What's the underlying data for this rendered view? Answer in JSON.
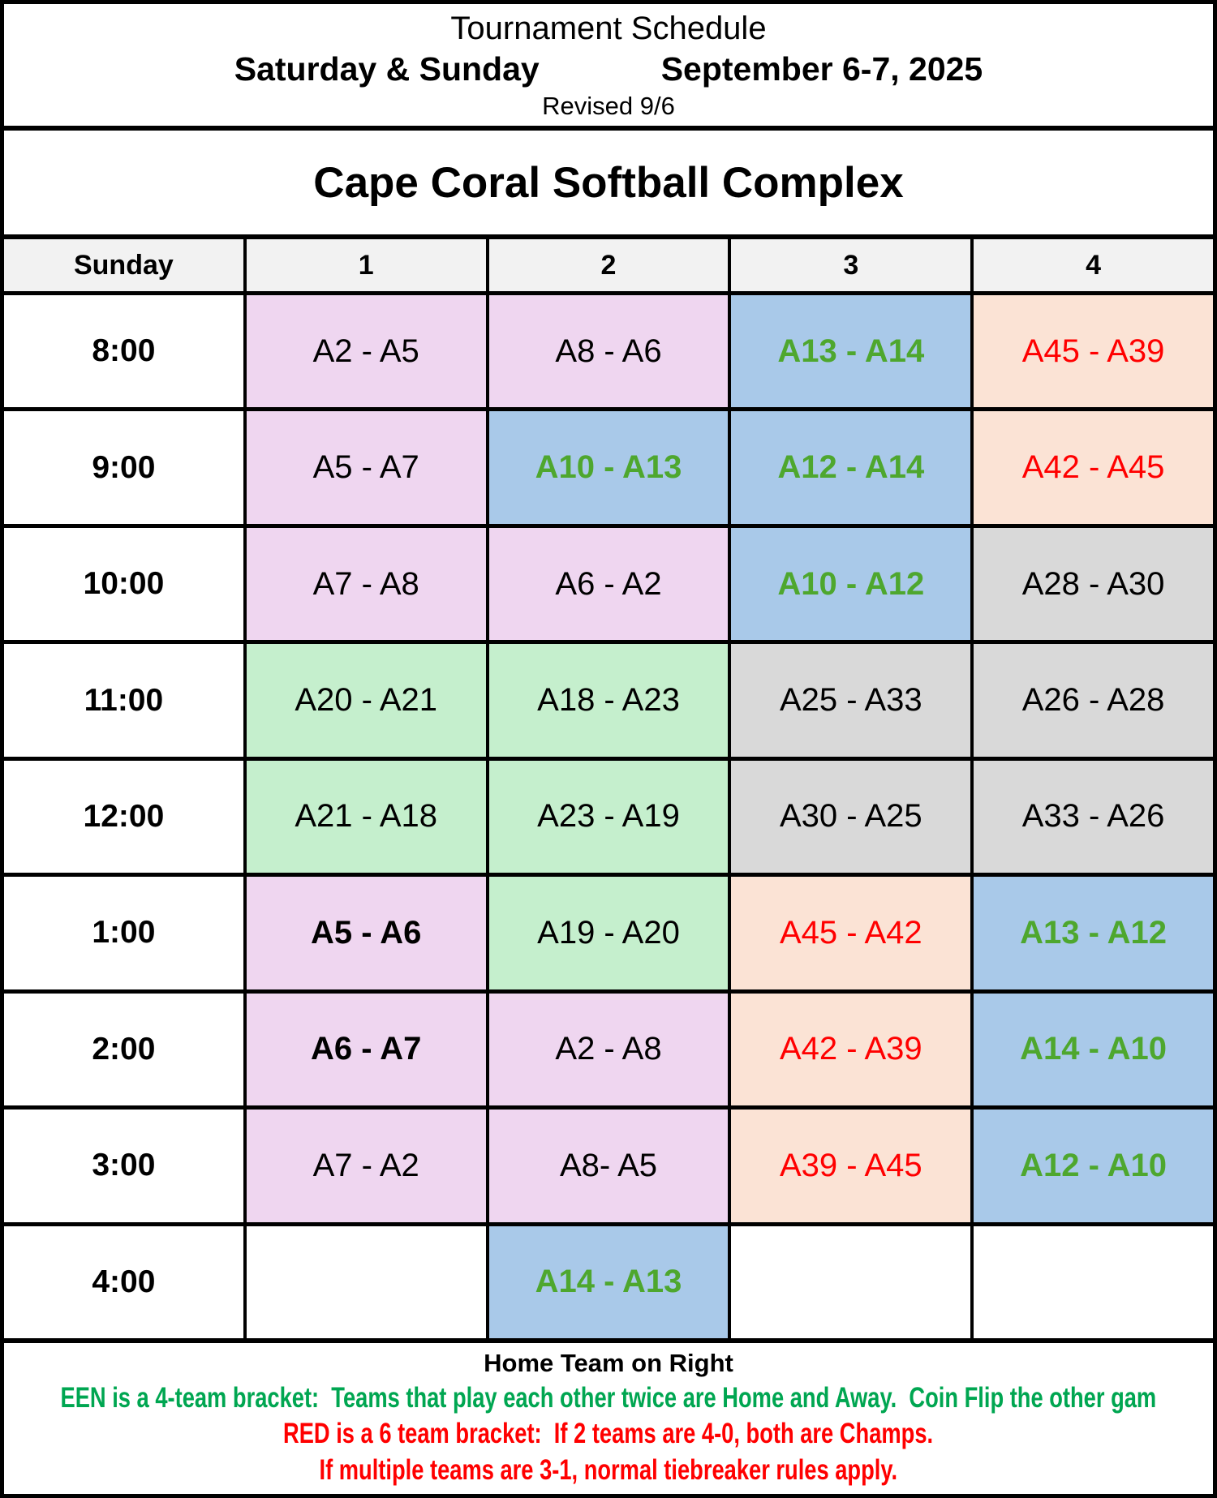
{
  "header": {
    "title": "Tournament Schedule",
    "days": "Saturday & Sunday",
    "dates": "September 6-7, 2025",
    "revision": "Revised 9/6",
    "venue": "Cape Coral Softball Complex"
  },
  "colors": {
    "pink": "#EFD6F0",
    "blue": "#A9C9E9",
    "peach": "#FBE3D5",
    "green": "#C5EFCD",
    "gray": "#D9D9D9",
    "white": "#FFFFFF",
    "header_bg": "#F2F2F2",
    "black_text": "#000000",
    "green_text": "#4EA72E",
    "red_text": "#FF0000",
    "footer_green": "#00A651",
    "footer_red": "#FF0000"
  },
  "schedule": {
    "columns": [
      "Sunday",
      "1",
      "2",
      "3",
      "4"
    ],
    "rows": [
      {
        "time": "8:00",
        "games": [
          {
            "text": "A2 - A5",
            "bg": "pink",
            "color": "black_text",
            "bold": false
          },
          {
            "text": "A8 - A6",
            "bg": "pink",
            "color": "black_text",
            "bold": false
          },
          {
            "text": "A13 - A14",
            "bg": "blue",
            "color": "green_text",
            "bold": true
          },
          {
            "text": "A45 - A39",
            "bg": "peach",
            "color": "red_text",
            "bold": false
          }
        ]
      },
      {
        "time": "9:00",
        "games": [
          {
            "text": "A5 - A7",
            "bg": "pink",
            "color": "black_text",
            "bold": false
          },
          {
            "text": "A10 - A13",
            "bg": "blue",
            "color": "green_text",
            "bold": true
          },
          {
            "text": "A12 - A14",
            "bg": "blue",
            "color": "green_text",
            "bold": true
          },
          {
            "text": "A42 - A45",
            "bg": "peach",
            "color": "red_text",
            "bold": false
          }
        ]
      },
      {
        "time": "10:00",
        "games": [
          {
            "text": "A7 - A8",
            "bg": "pink",
            "color": "black_text",
            "bold": false
          },
          {
            "text": "A6 - A2",
            "bg": "pink",
            "color": "black_text",
            "bold": false
          },
          {
            "text": "A10 - A12",
            "bg": "blue",
            "color": "green_text",
            "bold": true
          },
          {
            "text": "A28 - A30",
            "bg": "gray",
            "color": "black_text",
            "bold": false
          }
        ]
      },
      {
        "time": "11:00",
        "games": [
          {
            "text": "A20 - A21",
            "bg": "green",
            "color": "black_text",
            "bold": false
          },
          {
            "text": "A18 - A23",
            "bg": "green",
            "color": "black_text",
            "bold": false
          },
          {
            "text": "A25 - A33",
            "bg": "gray",
            "color": "black_text",
            "bold": false
          },
          {
            "text": "A26 - A28",
            "bg": "gray",
            "color": "black_text",
            "bold": false
          }
        ]
      },
      {
        "time": "12:00",
        "games": [
          {
            "text": "A21 - A18",
            "bg": "green",
            "color": "black_text",
            "bold": false
          },
          {
            "text": "A23 - A19",
            "bg": "green",
            "color": "black_text",
            "bold": false
          },
          {
            "text": "A30 - A25",
            "bg": "gray",
            "color": "black_text",
            "bold": false
          },
          {
            "text": "A33 - A26",
            "bg": "gray",
            "color": "black_text",
            "bold": false
          }
        ]
      },
      {
        "time": "1:00",
        "games": [
          {
            "text": "A5 - A6",
            "bg": "pink",
            "color": "black_text",
            "bold": true
          },
          {
            "text": "A19 - A20",
            "bg": "green",
            "color": "black_text",
            "bold": false
          },
          {
            "text": "A45 - A42",
            "bg": "peach",
            "color": "red_text",
            "bold": false
          },
          {
            "text": "A13 - A12",
            "bg": "blue",
            "color": "green_text",
            "bold": true
          }
        ]
      },
      {
        "time": "2:00",
        "games": [
          {
            "text": "A6 - A7",
            "bg": "pink",
            "color": "black_text",
            "bold": true
          },
          {
            "text": "A2 - A8",
            "bg": "pink",
            "color": "black_text",
            "bold": false
          },
          {
            "text": "A42 - A39",
            "bg": "peach",
            "color": "red_text",
            "bold": false
          },
          {
            "text": "A14 - A10",
            "bg": "blue",
            "color": "green_text",
            "bold": true
          }
        ]
      },
      {
        "time": "3:00",
        "games": [
          {
            "text": "A7 - A2",
            "bg": "pink",
            "color": "black_text",
            "bold": false
          },
          {
            "text": "A8- A5",
            "bg": "pink",
            "color": "black_text",
            "bold": false
          },
          {
            "text": "A39 - A45",
            "bg": "peach",
            "color": "red_text",
            "bold": false
          },
          {
            "text": "A12 - A10",
            "bg": "blue",
            "color": "green_text",
            "bold": true
          }
        ]
      },
      {
        "time": "4:00",
        "games": [
          {
            "text": "",
            "bg": "white",
            "color": "black_text",
            "bold": false
          },
          {
            "text": "A14 - A13",
            "bg": "blue",
            "color": "green_text",
            "bold": true
          },
          {
            "text": "",
            "bg": "white",
            "color": "black_text",
            "bold": false
          },
          {
            "text": "",
            "bg": "white",
            "color": "black_text",
            "bold": false
          }
        ]
      }
    ]
  },
  "footer": {
    "home_note": "Home Team on Right",
    "green_note": "EEN is a 4-team bracket:  Teams that play each other twice are Home and Away.  Coin Flip the other gam",
    "red_note_1": "RED is a 6 team bracket:  If 2 teams are 4-0, both are Champs.",
    "red_note_2": "If multiple teams are 3-1, normal tiebreaker rules apply."
  }
}
